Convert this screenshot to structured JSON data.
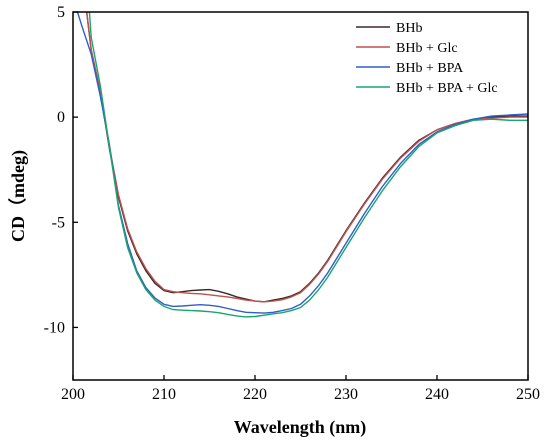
{
  "chart_data": {
    "type": "line",
    "xlabel": "Wavelength (nm)",
    "ylabel": "CD（mdeg)",
    "xlim": [
      200,
      250
    ],
    "ylim": [
      -12.5,
      5
    ],
    "xticks": [
      200,
      210,
      220,
      230,
      240,
      250
    ],
    "yticks": [
      5,
      0,
      -5,
      -10
    ],
    "grid": false,
    "legend": "top-right",
    "series": [
      {
        "name": "BHb",
        "color": "#3a2a2a",
        "x": [
          201.5,
          202,
          203,
          204,
          205,
          206,
          207,
          208,
          209,
          210,
          211,
          212,
          213,
          214,
          215,
          216,
          217,
          218,
          219,
          220,
          221,
          222,
          223,
          224,
          225,
          226,
          227,
          228,
          229,
          230,
          232,
          234,
          236,
          238,
          240,
          242,
          244,
          246,
          248,
          250
        ],
        "y": [
          5,
          3.2,
          1.2,
          -1.5,
          -3.8,
          -5.4,
          -6.5,
          -7.3,
          -7.9,
          -8.25,
          -8.35,
          -8.3,
          -8.25,
          -8.22,
          -8.2,
          -8.28,
          -8.4,
          -8.55,
          -8.65,
          -8.75,
          -8.78,
          -8.7,
          -8.62,
          -8.5,
          -8.3,
          -7.9,
          -7.4,
          -6.8,
          -6.1,
          -5.4,
          -4.1,
          -2.9,
          -1.9,
          -1.1,
          -0.6,
          -0.3,
          -0.1,
          0.0,
          0.05,
          0.05
        ]
      },
      {
        "name": "BHb + Glc",
        "color": "#c0504d",
        "x": [
          201.5,
          202,
          203,
          204,
          205,
          206,
          207,
          208,
          209,
          210,
          211,
          212,
          213,
          214,
          215,
          216,
          217,
          218,
          219,
          220,
          221,
          222,
          223,
          224,
          225,
          226,
          227,
          228,
          229,
          230,
          232,
          234,
          236,
          238,
          240,
          242,
          244,
          246,
          248,
          250
        ],
        "y": [
          5,
          3.2,
          1.2,
          -1.4,
          -3.7,
          -5.3,
          -6.4,
          -7.2,
          -7.8,
          -8.2,
          -8.3,
          -8.35,
          -8.38,
          -8.4,
          -8.45,
          -8.5,
          -8.55,
          -8.62,
          -8.7,
          -8.75,
          -8.78,
          -8.75,
          -8.68,
          -8.55,
          -8.35,
          -7.95,
          -7.45,
          -6.85,
          -6.15,
          -5.45,
          -4.15,
          -2.95,
          -1.95,
          -1.15,
          -0.6,
          -0.3,
          -0.1,
          -0.05,
          0.0,
          0.0
        ]
      },
      {
        "name": "BHb + BPA",
        "color": "#2f5fc9",
        "x": [
          200.5,
          201,
          202,
          203,
          204,
          205,
          206,
          207,
          208,
          209,
          210,
          211,
          212,
          213,
          214,
          215,
          216,
          217,
          218,
          219,
          220,
          221,
          222,
          223,
          224,
          225,
          226,
          227,
          228,
          229,
          230,
          232,
          234,
          236,
          238,
          240,
          242,
          244,
          246,
          248,
          250
        ],
        "y": [
          5,
          4.3,
          3.0,
          1.0,
          -1.3,
          -4.2,
          -6.0,
          -7.3,
          -8.1,
          -8.6,
          -8.9,
          -9.0,
          -8.98,
          -8.95,
          -8.92,
          -8.95,
          -9.0,
          -9.1,
          -9.2,
          -9.28,
          -9.3,
          -9.32,
          -9.28,
          -9.2,
          -9.1,
          -8.9,
          -8.5,
          -8.0,
          -7.4,
          -6.7,
          -6.0,
          -4.6,
          -3.3,
          -2.2,
          -1.3,
          -0.7,
          -0.35,
          -0.1,
          0.05,
          0.1,
          0.15
        ]
      },
      {
        "name": "BHb + BPA + Glc",
        "color": "#1aa56f",
        "x": [
          201.8,
          202,
          203,
          204,
          205,
          206,
          207,
          208,
          209,
          210,
          211,
          212,
          213,
          214,
          215,
          216,
          217,
          218,
          219,
          220,
          221,
          222,
          223,
          224,
          225,
          226,
          227,
          228,
          229,
          230,
          232,
          234,
          236,
          238,
          240,
          242,
          244,
          246,
          248,
          250
        ],
        "y": [
          5,
          3.8,
          1.5,
          -1.4,
          -4.3,
          -6.2,
          -7.4,
          -8.2,
          -8.7,
          -9.0,
          -9.15,
          -9.18,
          -9.2,
          -9.22,
          -9.25,
          -9.3,
          -9.38,
          -9.45,
          -9.5,
          -9.48,
          -9.42,
          -9.35,
          -9.3,
          -9.2,
          -9.05,
          -8.7,
          -8.2,
          -7.6,
          -6.9,
          -6.2,
          -4.8,
          -3.5,
          -2.35,
          -1.4,
          -0.75,
          -0.4,
          -0.15,
          -0.1,
          -0.15,
          -0.15
        ]
      }
    ]
  }
}
